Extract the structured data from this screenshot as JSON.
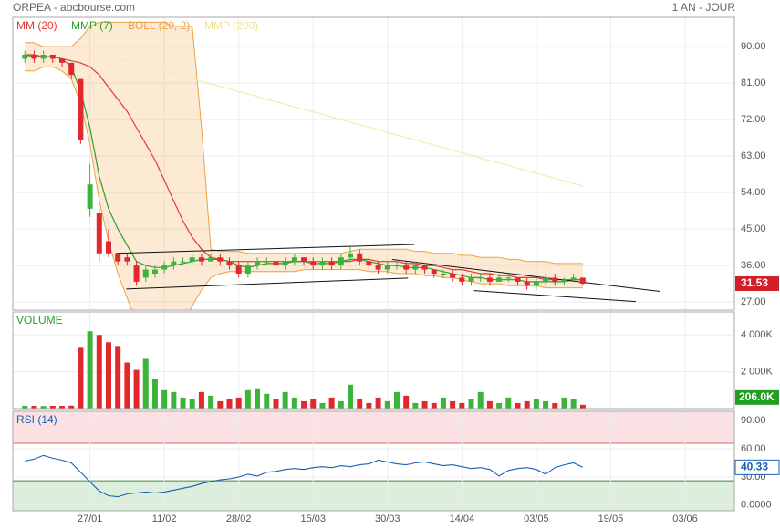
{
  "chart_data": {
    "type": "candlestick",
    "title": "ORPEA - abcbourse.com",
    "period": "1 AN - JOUR",
    "xlim": [
      -1.3,
      76.3
    ],
    "xticks": [
      {
        "value": 7,
        "label": "27/01"
      },
      {
        "value": 15,
        "label": "11/02"
      },
      {
        "value": 23,
        "label": "28/02"
      },
      {
        "value": 31,
        "label": "15/03"
      },
      {
        "value": 39,
        "label": "30/03"
      },
      {
        "value": 47,
        "label": "14/04"
      },
      {
        "value": 55,
        "label": "03/05"
      },
      {
        "value": 63,
        "label": "19/05"
      },
      {
        "value": 71,
        "label": "03/06"
      }
    ],
    "grid": true,
    "price": {
      "ylim": [
        25,
        97
      ],
      "yticks": [
        {
          "value": 90,
          "label": "90.00"
        },
        {
          "value": 81,
          "label": "81.00"
        },
        {
          "value": 72,
          "label": "72.00"
        },
        {
          "value": 63,
          "label": "63.00"
        },
        {
          "value": 54,
          "label": "54.00"
        },
        {
          "value": 45,
          "label": "45.00"
        },
        {
          "value": 36,
          "label": "36.00"
        },
        {
          "value": 27,
          "label": "27.00"
        }
      ],
      "up_color": "#3cb43c",
      "down_color": "#e0282d",
      "candles": {
        "open": [
          87,
          88,
          87,
          88,
          87,
          86,
          82,
          50,
          49,
          42,
          39,
          38,
          36,
          33,
          34,
          35,
          36,
          37,
          37,
          38,
          37,
          38,
          37,
          36,
          34,
          36,
          37,
          37,
          36,
          37,
          38,
          37,
          36,
          37,
          36,
          38,
          39,
          37,
          36,
          35,
          36,
          36,
          35,
          36,
          35,
          34,
          34,
          33,
          32,
          33,
          33,
          32,
          33,
          33,
          32,
          31,
          32,
          33,
          32,
          32.5,
          33
        ],
        "high": [
          89,
          89,
          89,
          88,
          87,
          86,
          82,
          61,
          50,
          45,
          39,
          39,
          37,
          36,
          36,
          37,
          38,
          38,
          39,
          39,
          39,
          39,
          38,
          37,
          37,
          38,
          38,
          38,
          38,
          39,
          38,
          38,
          38,
          38,
          39,
          41,
          40,
          38,
          37,
          37,
          37,
          37,
          37,
          36,
          35,
          35,
          35,
          34,
          34,
          34,
          34,
          34,
          34,
          33,
          33,
          33,
          34,
          34,
          33,
          34,
          33
        ],
        "low": [
          86,
          86,
          86,
          86,
          85,
          82,
          66,
          48,
          37,
          38,
          36,
          36,
          31,
          32,
          33,
          34,
          35,
          36,
          36,
          36,
          37,
          36,
          35,
          33,
          33,
          35,
          36,
          35,
          35,
          36,
          36,
          35,
          35,
          35,
          35,
          37,
          36,
          35,
          34,
          34,
          35,
          34,
          34,
          34,
          33,
          33,
          32,
          31,
          31,
          32,
          31,
          32,
          32,
          31,
          30,
          30,
          31,
          31,
          31,
          32,
          31
        ],
        "close": [
          88,
          87,
          88,
          87,
          86,
          83,
          67,
          56,
          39,
          39,
          37,
          37,
          32,
          35,
          35,
          36,
          37,
          37,
          38,
          37,
          38,
          37,
          36,
          34,
          36,
          37,
          37,
          36,
          37,
          38,
          37,
          36,
          37,
          36,
          38,
          39,
          37,
          36,
          35,
          36,
          36,
          35,
          36,
          35,
          34,
          34,
          33,
          32,
          33,
          33,
          32,
          33,
          33,
          32,
          31,
          32,
          33,
          32,
          32.5,
          33,
          31.53
        ]
      },
      "series": [
        {
          "name": "MM (20)",
          "color": "#e53935",
          "values": [
            88,
            88,
            87.5,
            87.5,
            87,
            86.5,
            86,
            85,
            83,
            80,
            77,
            74,
            70,
            66,
            62,
            57,
            52,
            47,
            43,
            40,
            38,
            37.5,
            37,
            37,
            37,
            37,
            37,
            37,
            37,
            37,
            37,
            37,
            37,
            37,
            37,
            37,
            37.5,
            37.5,
            37,
            37,
            37,
            36.5,
            36.5,
            36,
            36,
            35.5,
            35,
            35,
            34.5,
            34,
            34,
            33.5,
            33.5,
            33,
            33,
            33,
            32.5,
            32.5,
            32.5,
            32.5,
            32.5
          ]
        },
        {
          "name": "MMP (7)",
          "color": "#2e9e2e",
          "values": [
            88,
            87.5,
            87.5,
            87.5,
            87,
            85,
            79,
            70,
            58,
            50,
            45,
            41,
            37,
            36,
            35.5,
            35.5,
            36,
            36.5,
            37,
            37.5,
            37.5,
            37.5,
            37,
            36,
            35.5,
            36,
            36.5,
            36.5,
            36.5,
            37,
            37,
            36.5,
            36.5,
            36.5,
            37,
            37.5,
            37.5,
            37,
            36.5,
            36,
            36,
            35.5,
            35.5,
            35.5,
            35,
            34.5,
            34,
            33.5,
            33,
            33,
            32.5,
            32.5,
            32.5,
            32.5,
            32,
            32,
            32,
            32,
            32,
            32.5,
            32.5
          ]
        },
        {
          "name": "MMP (200)",
          "color": "#f3ecb0",
          "values": [
            null,
            null,
            null,
            null,
            null,
            null,
            null,
            89,
            88.4,
            87.7,
            87.1,
            86.5,
            85.9,
            85.2,
            84.6,
            84.0,
            83.3,
            82.7,
            82.1,
            81.4,
            80.8,
            80.2,
            79.6,
            78.9,
            78.3,
            77.7,
            77.0,
            76.4,
            75.8,
            75.1,
            74.5,
            73.9,
            73.3,
            72.6,
            72.0,
            71.4,
            70.7,
            70.1,
            69.5,
            68.8,
            68.2,
            67.6,
            67.0,
            66.3,
            65.7,
            65.1,
            64.4,
            63.8,
            63.2,
            62.5,
            61.9,
            61.3,
            60.7,
            60.0,
            59.4,
            58.8,
            58.1,
            57.5,
            56.9,
            56.2,
            55.6
          ]
        }
      ],
      "bollinger": {
        "name": "BOLL (20, 2)",
        "color": "#f0a040",
        "upper": [
          91,
          91,
          90,
          90,
          90,
          90,
          92,
          95,
          96,
          96,
          96,
          96,
          96,
          96,
          96,
          96,
          95,
          95,
          95,
          70,
          40,
          39.5,
          39.5,
          39.5,
          39,
          39,
          39,
          39,
          39,
          39,
          39,
          39,
          39,
          39,
          39,
          39.5,
          40,
          40,
          40,
          40,
          40,
          40,
          39.5,
          39.5,
          39,
          39,
          39,
          38.5,
          38.5,
          38,
          38,
          38,
          37.5,
          37.5,
          37,
          37,
          37,
          36.5,
          36.5,
          36.5,
          36.5
        ],
        "lower": [
          84,
          84,
          85,
          85,
          84,
          82,
          76,
          66,
          52,
          42,
          34,
          28,
          22,
          18,
          18,
          18,
          20,
          22,
          26,
          30,
          33,
          34,
          34.5,
          34.5,
          34.5,
          34.5,
          34.5,
          34.5,
          34.5,
          34.5,
          35,
          35,
          35,
          35,
          35,
          35,
          35,
          34.5,
          34.5,
          34.5,
          34,
          34,
          34,
          33.5,
          33.5,
          33,
          33,
          32.5,
          32,
          31.5,
          31.5,
          31.5,
          31,
          31,
          31,
          31,
          30.5,
          30.5,
          30.5,
          30.5,
          30.5
        ]
      },
      "trendlines": [
        {
          "x": [
            9.8,
            41.9
          ],
          "y": [
            39,
            41.2
          ]
        },
        {
          "x": [
            10.9,
            41.2
          ],
          "y": [
            30.2,
            32.9
          ]
        },
        {
          "x": [
            39.5,
            68.3
          ],
          "y": [
            37.5,
            29.6
          ]
        },
        {
          "x": [
            48.3,
            65.7
          ],
          "y": [
            29.8,
            27.1
          ]
        }
      ]
    },
    "volume": {
      "title": "VOLUME",
      "ylim": [
        0,
        5200000
      ],
      "yticks": [
        {
          "value": 4000000,
          "label": "4 000K"
        },
        {
          "value": 2000000,
          "label": "2 000K"
        }
      ],
      "values": [
        150000,
        150000,
        140000,
        150000,
        150000,
        160000,
        3300000,
        4200000,
        4000000,
        3600000,
        3400000,
        2500000,
        2100000,
        2700000,
        1600000,
        1000000,
        900000,
        600000,
        500000,
        900000,
        700000,
        400000,
        500000,
        600000,
        1000000,
        1100000,
        800000,
        500000,
        900000,
        600000,
        400000,
        500000,
        300000,
        600000,
        400000,
        1300000,
        500000,
        300000,
        600000,
        400000,
        900000,
        700000,
        300000,
        400000,
        300000,
        600000,
        400000,
        300000,
        500000,
        900000,
        400000,
        300000,
        600000,
        300000,
        400000,
        500000,
        400000,
        300000,
        600000,
        500000,
        206000
      ],
      "last_value_label": "206.0K"
    },
    "rsi": {
      "title": "RSI (14)",
      "color": "#1a5fb4",
      "ylim": [
        -6,
        99
      ],
      "yticks": [
        {
          "value": 90,
          "label": "90.00"
        },
        {
          "value": 60,
          "label": "60.00"
        },
        {
          "value": 30,
          "label": "30.00"
        },
        {
          "value": 0,
          "label": "0.0000"
        }
      ],
      "overbought": 66,
      "oversold": 26,
      "values": [
        47,
        49,
        53,
        50,
        48,
        45,
        35,
        25,
        15,
        10,
        9,
        12,
        13,
        14,
        13,
        14,
        16,
        18,
        20,
        23,
        25,
        27,
        28,
        30,
        33,
        31,
        35,
        36,
        38,
        39,
        38,
        40,
        41,
        40,
        42,
        41,
        43,
        44,
        48,
        46,
        44,
        43,
        45,
        46,
        44,
        42,
        43,
        41,
        39,
        40,
        38,
        31,
        37,
        39,
        40,
        38,
        33,
        40,
        43,
        45,
        40.33
      ]
    }
  }
}
